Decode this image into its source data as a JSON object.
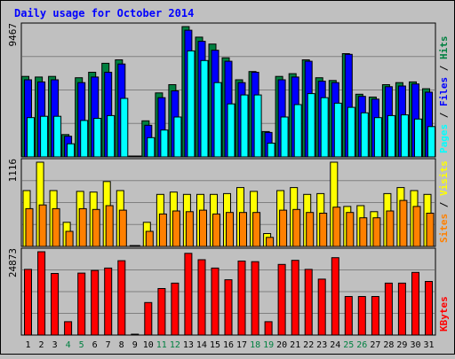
{
  "chart_data": {
    "type": "bar",
    "title": "Daily usage for October 2014",
    "categories": [
      "1",
      "2",
      "3",
      "4",
      "5",
      "6",
      "7",
      "8",
      "9",
      "10",
      "11",
      "12",
      "13",
      "14",
      "15",
      "16",
      "17",
      "18",
      "19",
      "20",
      "21",
      "22",
      "23",
      "24",
      "25",
      "26",
      "27",
      "28",
      "29",
      "30",
      "31"
    ],
    "weekend_days": [
      "4",
      "5",
      "11",
      "12",
      "18",
      "19",
      "25",
      "26"
    ],
    "panels": [
      {
        "ylabel_max": "9467",
        "ymax": 9467,
        "legend": [
          "Pages",
          "Files",
          "Hits"
        ],
        "series": [
          {
            "name": "Hits",
            "color": "#008040",
            "values": [
              5850,
              5800,
              5850,
              1620,
              5750,
              6150,
              6800,
              7050,
              0,
              2620,
              4650,
              5250,
              9467,
              8700,
              8200,
              7200,
              5600,
              6200,
              1840,
              5850,
              6050,
              7050,
              5750,
              5550,
              7500,
              4550,
              4350,
              5250,
              5400,
              5450,
              4950
            ]
          },
          {
            "name": "Files",
            "color": "#0000ff",
            "values": [
              5600,
              5450,
              5600,
              1500,
              5400,
              5800,
              6150,
              6750,
              0,
              2300,
              4300,
              4800,
              9200,
              8400,
              7750,
              6950,
              5400,
              6150,
              1780,
              5600,
              5800,
              6950,
              5500,
              5400,
              7450,
              4400,
              4200,
              5100,
              5150,
              5300,
              4700
            ]
          },
          {
            "name": "Pages",
            "color": "#00ffff",
            "values": [
              2850,
              2950,
              2950,
              950,
              2650,
              2800,
              3000,
              4250,
              0,
              1400,
              1950,
              2900,
              7700,
              7000,
              5400,
              3850,
              4500,
              4500,
              1000,
              2900,
              3800,
              4600,
              4300,
              3900,
              3600,
              3200,
              2850,
              3000,
              3050,
              2750,
              2200
            ]
          }
        ]
      },
      {
        "ylabel_max": "1116",
        "ymax": 1116,
        "legend": [
          "Sites",
          "Visits"
        ],
        "series": [
          {
            "name": "Visits",
            "color": "#ffff00",
            "values": [
              740,
              1116,
              740,
              320,
              730,
              720,
              860,
              740,
              0,
              320,
              690,
              720,
              690,
              690,
              690,
              700,
              780,
              730,
              170,
              740,
              780,
              690,
              700,
              1116,
              530,
              540,
              460,
              700,
              780,
              740,
              690
            ]
          },
          {
            "name": "Sites",
            "color": "#ff8000",
            "values": [
              500,
              550,
              500,
              200,
              500,
              490,
              540,
              480,
              0,
              200,
              430,
              470,
              460,
              480,
              430,
              450,
              450,
              450,
              120,
              480,
              490,
              450,
              440,
              520,
              450,
              380,
              380,
              470,
              610,
              530,
              440
            ]
          }
        ]
      },
      {
        "ylabel_max": "24873",
        "ymax": 24873,
        "legend": [
          "KBytes"
        ],
        "series": [
          {
            "name": "KBytes",
            "color": "#ff0000",
            "values": [
              19600,
              24873,
              18400,
              4000,
              18500,
              19300,
              20000,
              22200,
              0,
              9700,
              13900,
              15500,
              24400,
              22500,
              20000,
              16500,
              22100,
              21900,
              4000,
              21100,
              22300,
              19600,
              16700,
              23100,
              11500,
              11500,
              11500,
              15500,
              15500,
              18700,
              16000
            ]
          }
        ]
      }
    ]
  }
}
